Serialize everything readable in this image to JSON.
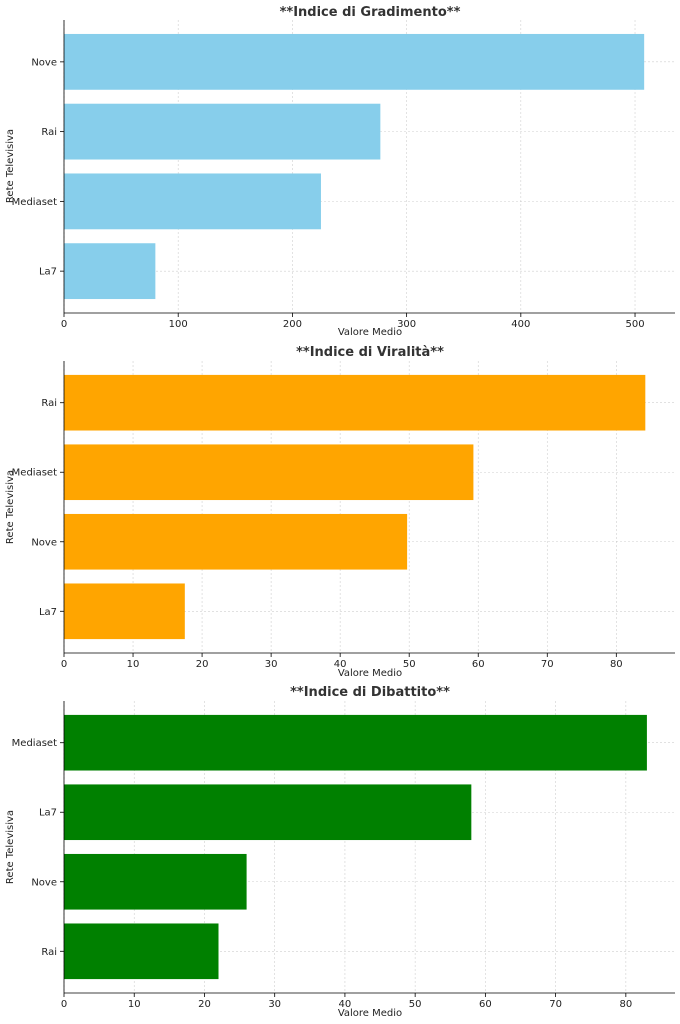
{
  "chart_data": [
    {
      "type": "bar",
      "orientation": "horizontal",
      "title": "**Indice di Gradimento**",
      "xlabel": "Valore Medio",
      "ylabel": "Rete Televisiva",
      "categories": [
        "Nove",
        "Rai",
        "Mediaset",
        "La7"
      ],
      "values": [
        508,
        277,
        225,
        80
      ],
      "xlim": [
        0,
        535
      ],
      "xticks": [
        0,
        100,
        200,
        300,
        400,
        500
      ],
      "color": "#87CEEB",
      "grid": true
    },
    {
      "type": "bar",
      "orientation": "horizontal",
      "title": "**Indice di Viralità**",
      "xlabel": "Valore Medio",
      "ylabel": "Rete Televisiva",
      "categories": [
        "Rai",
        "Mediaset",
        "Nove",
        "La7"
      ],
      "values": [
        84.2,
        59.3,
        49.7,
        17.5
      ],
      "xlim": [
        0,
        88.5
      ],
      "xticks": [
        0,
        10,
        20,
        30,
        40,
        50,
        60,
        70,
        80
      ],
      "color": "#FFA500",
      "grid": true
    },
    {
      "type": "bar",
      "orientation": "horizontal",
      "title": "**Indice di Dibattito**",
      "xlabel": "Valore Medio",
      "ylabel": "Rete Televisiva",
      "categories": [
        "Mediaset",
        "La7",
        "Nove",
        "Rai"
      ],
      "values": [
        83,
        58,
        26,
        22
      ],
      "xlim": [
        0,
        87
      ],
      "xticks": [
        0,
        10,
        20,
        30,
        40,
        50,
        60,
        70,
        80
      ],
      "color": "#008000",
      "grid": true
    }
  ]
}
